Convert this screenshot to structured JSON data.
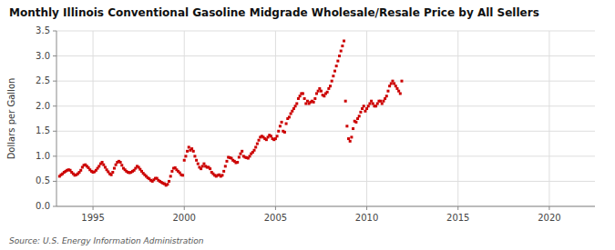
{
  "chart_data": {
    "type": "scatter",
    "title": "Monthly Illinois Conventional Gasoline Midgrade Wholesale/Resale Price by All Sellers",
    "ylabel": "Dollars per Gallon",
    "source": "Source: U.S. Energy Information Administration",
    "color": "#cc0000",
    "marker": "square",
    "grid": true,
    "xlim": [
      1993.0,
      2022.5
    ],
    "ylim": [
      0.0,
      3.5
    ],
    "xticks": [
      1995,
      2000,
      2005,
      2010,
      2015,
      2020
    ],
    "yticks": [
      {
        "value": 0.0,
        "label": "0.0"
      },
      0.5,
      {
        "value": 1.0,
        "label": "1.0"
      },
      1.5,
      {
        "value": 2.0,
        "label": "2.0"
      },
      2.5,
      {
        "value": 3.0,
        "label": "3.0"
      },
      3.5
    ],
    "x": [
      1993.167,
      1993.25,
      1993.333,
      1993.417,
      1993.5,
      1993.583,
      1993.667,
      1993.75,
      1993.833,
      1993.917,
      1994.0,
      1994.083,
      1994.167,
      1994.25,
      1994.333,
      1994.417,
      1994.5,
      1994.583,
      1994.667,
      1994.75,
      1994.833,
      1994.917,
      1995.0,
      1995.083,
      1995.167,
      1995.25,
      1995.333,
      1995.417,
      1995.5,
      1995.583,
      1995.667,
      1995.75,
      1995.833,
      1995.917,
      1996.0,
      1996.083,
      1996.167,
      1996.25,
      1996.333,
      1996.417,
      1996.5,
      1996.583,
      1996.667,
      1996.75,
      1996.833,
      1996.917,
      1997.0,
      1997.083,
      1997.167,
      1997.25,
      1997.333,
      1997.417,
      1997.5,
      1997.583,
      1997.667,
      1997.75,
      1997.833,
      1997.917,
      1998.0,
      1998.083,
      1998.167,
      1998.25,
      1998.333,
      1998.417,
      1998.5,
      1998.583,
      1998.667,
      1998.75,
      1998.833,
      1998.917,
      1999.0,
      1999.083,
      1999.167,
      1999.25,
      1999.333,
      1999.417,
      1999.5,
      1999.583,
      1999.667,
      1999.75,
      1999.833,
      1999.917,
      2000.0,
      2000.083,
      2000.167,
      2000.25,
      2000.333,
      2000.417,
      2000.5,
      2000.583,
      2000.667,
      2000.75,
      2000.833,
      2000.917,
      2001.0,
      2001.083,
      2001.167,
      2001.25,
      2001.333,
      2001.417,
      2001.5,
      2001.583,
      2001.667,
      2001.75,
      2001.833,
      2001.917,
      2002.0,
      2002.083,
      2002.167,
      2002.25,
      2002.333,
      2002.417,
      2002.5,
      2002.583,
      2002.667,
      2002.75,
      2002.833,
      2002.917,
      2003.0,
      2003.083,
      2003.167,
      2003.25,
      2003.333,
      2003.417,
      2003.5,
      2003.583,
      2003.667,
      2003.75,
      2003.833,
      2003.917,
      2004.0,
      2004.083,
      2004.167,
      2004.25,
      2004.333,
      2004.417,
      2004.5,
      2004.583,
      2004.667,
      2004.75,
      2004.833,
      2004.917,
      2005.0,
      2005.083,
      2005.167,
      2005.25,
      2005.333,
      2005.417,
      2005.5,
      2005.583,
      2005.667,
      2005.75,
      2005.833,
      2005.917,
      2006.0,
      2006.083,
      2006.167,
      2006.25,
      2006.333,
      2006.417,
      2006.5,
      2006.583,
      2006.667,
      2006.75,
      2006.833,
      2006.917,
      2007.0,
      2007.083,
      2007.167,
      2007.25,
      2007.333,
      2007.417,
      2007.5,
      2007.583,
      2007.667,
      2007.75,
      2007.833,
      2007.917,
      2008.0,
      2008.083,
      2008.167,
      2008.25,
      2008.333,
      2008.417,
      2008.5,
      2008.583,
      2008.667,
      2008.75,
      2008.833,
      2008.917,
      2009.0,
      2009.083,
      2009.167,
      2009.25,
      2009.333,
      2009.417,
      2009.5,
      2009.583,
      2009.667,
      2009.75,
      2009.833,
      2009.917,
      2010.0,
      2010.083,
      2010.167,
      2010.25,
      2010.333,
      2010.417,
      2010.5,
      2010.583,
      2010.667,
      2010.75,
      2010.833,
      2010.917,
      2011.0,
      2011.083,
      2011.167,
      2011.25,
      2011.333,
      2011.417,
      2011.5,
      2011.583,
      2011.667,
      2011.75,
      2011.833,
      2011.917
    ],
    "values": [
      0.6,
      0.63,
      0.65,
      0.68,
      0.7,
      0.72,
      0.73,
      0.72,
      0.68,
      0.65,
      0.62,
      0.63,
      0.65,
      0.68,
      0.72,
      0.78,
      0.82,
      0.83,
      0.8,
      0.77,
      0.73,
      0.7,
      0.68,
      0.69,
      0.72,
      0.76,
      0.8,
      0.85,
      0.88,
      0.83,
      0.78,
      0.73,
      0.69,
      0.65,
      0.63,
      0.68,
      0.76,
      0.83,
      0.88,
      0.9,
      0.88,
      0.82,
      0.76,
      0.73,
      0.7,
      0.68,
      0.67,
      0.68,
      0.7,
      0.72,
      0.76,
      0.8,
      0.78,
      0.74,
      0.7,
      0.66,
      0.63,
      0.6,
      0.57,
      0.55,
      0.52,
      0.5,
      0.53,
      0.56,
      0.56,
      0.52,
      0.5,
      0.48,
      0.46,
      0.45,
      0.42,
      0.44,
      0.5,
      0.6,
      0.7,
      0.76,
      0.77,
      0.73,
      0.7,
      0.67,
      0.63,
      0.62,
      0.92,
      1.0,
      1.1,
      1.18,
      1.12,
      1.15,
      1.1,
      1.0,
      0.92,
      0.85,
      0.78,
      0.75,
      0.8,
      0.85,
      0.8,
      0.78,
      0.78,
      0.75,
      0.68,
      0.65,
      0.62,
      0.6,
      0.62,
      0.63,
      0.6,
      0.62,
      0.7,
      0.8,
      0.9,
      0.98,
      0.97,
      0.96,
      0.92,
      0.9,
      0.87,
      0.88,
      0.98,
      1.05,
      1.1,
      1.0,
      0.98,
      0.97,
      0.96,
      1.0,
      1.05,
      1.08,
      1.12,
      1.18,
      1.25,
      1.32,
      1.38,
      1.4,
      1.38,
      1.35,
      1.33,
      1.38,
      1.42,
      1.4,
      1.35,
      1.33,
      1.35,
      1.4,
      1.5,
      1.6,
      1.68,
      1.5,
      1.48,
      1.65,
      1.75,
      1.78,
      1.85,
      1.9,
      1.95,
      2.0,
      2.05,
      2.15,
      2.2,
      2.25,
      2.25,
      2.15,
      2.05,
      2.1,
      2.05,
      2.08,
      2.1,
      2.08,
      2.15,
      2.25,
      2.3,
      2.35,
      2.3,
      2.22,
      2.2,
      2.25,
      2.28,
      2.35,
      2.4,
      2.5,
      2.6,
      2.7,
      2.8,
      2.9,
      3.0,
      3.1,
      3.2,
      3.3,
      2.1,
      1.6,
      1.35,
      1.3,
      1.38,
      1.55,
      1.7,
      1.68,
      1.75,
      1.8,
      1.88,
      1.95,
      2.0,
      1.9,
      1.95,
      2.0,
      2.05,
      2.1,
      2.05,
      2.0,
      2.0,
      2.05,
      2.1,
      2.1,
      2.05,
      2.1,
      2.15,
      2.2,
      2.3,
      2.4,
      2.45,
      2.5,
      2.45,
      2.4,
      2.35,
      2.3,
      2.25,
      2.5
    ]
  }
}
